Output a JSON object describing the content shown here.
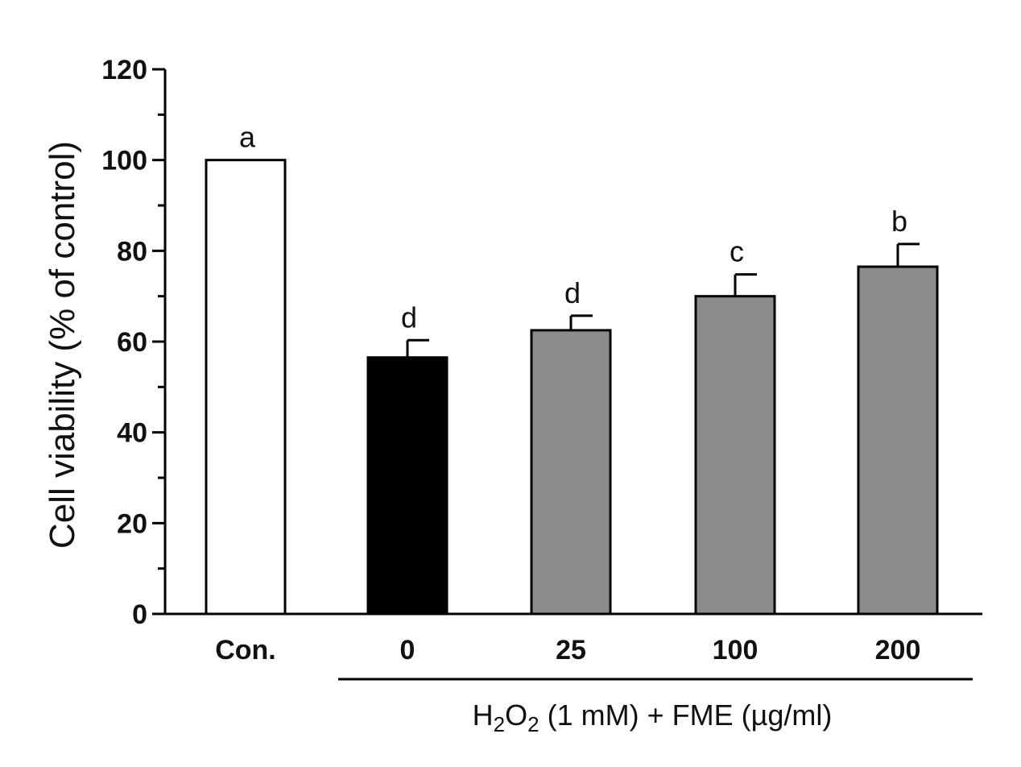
{
  "chart_data": {
    "type": "bar",
    "categories": [
      "Con.",
      "0",
      "25",
      "100",
      "200"
    ],
    "values": [
      100,
      56.5,
      62.5,
      70.0,
      76.5
    ],
    "errors": [
      0,
      3.8,
      3.2,
      4.8,
      5.0
    ],
    "significance_letters": [
      "a",
      "d",
      "d",
      "c",
      "b"
    ],
    "bar_colors": [
      "#ffffff",
      "#000000",
      "#8c8c8c",
      "#8c8c8c",
      "#8c8c8c"
    ],
    "ylabel": "Cell viability (% of control)",
    "xlabel_group": {
      "text_parts": [
        "H",
        "2",
        "O",
        "2",
        " (1 mM) + FME (µg/ml)"
      ],
      "applies_to_categories": [
        "0",
        "25",
        "100",
        "200"
      ]
    },
    "ylim": [
      0,
      120
    ],
    "yticks": [
      0,
      20,
      40,
      60,
      80,
      100,
      120
    ],
    "grid": false,
    "legend": "none"
  }
}
